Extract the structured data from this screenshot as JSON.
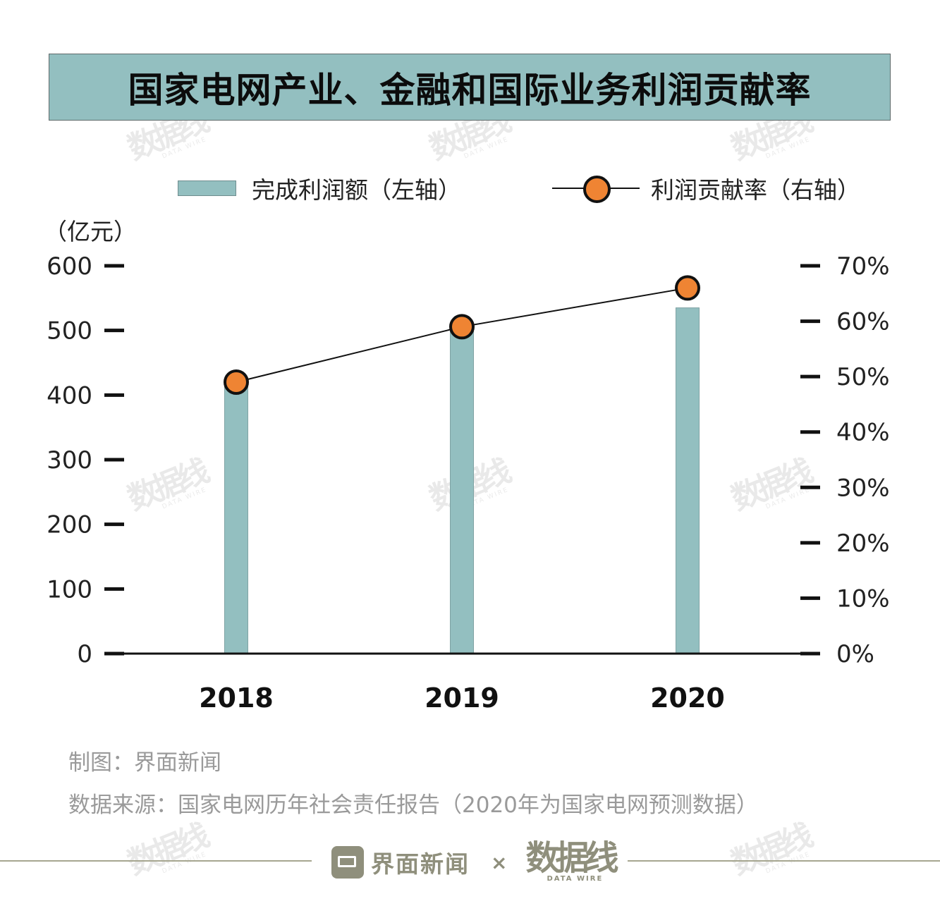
{
  "title": "国家电网产业、金融和国际业务利润贡献率",
  "legend": {
    "bar_label": "完成利润额（左轴）",
    "line_label": "利润贡献率（右轴）"
  },
  "unit_label": "（亿元）",
  "colors": {
    "bar": "#93bfc0",
    "marker": "#ef8433",
    "line": "#111111",
    "title_bg": "#93bfc0"
  },
  "chart_data": {
    "type": "bar",
    "categories": [
      "2018",
      "2019",
      "2020"
    ],
    "series": [
      {
        "name": "完成利润额（左轴）",
        "type": "bar",
        "axis": "left",
        "values": [
          420,
          505,
          535
        ]
      },
      {
        "name": "利润贡献率（右轴）",
        "type": "line",
        "axis": "right",
        "values": [
          49,
          59,
          66
        ]
      }
    ],
    "y_left": {
      "min": 0,
      "max": 600,
      "ticks": [
        "0",
        "100",
        "200",
        "300",
        "400",
        "500",
        "600"
      ]
    },
    "y_right": {
      "min": 0,
      "max": 70,
      "ticks": [
        "0%",
        "10%",
        "20%",
        "30%",
        "40%",
        "50%",
        "60%",
        "70%"
      ]
    },
    "legend_position": "top"
  },
  "source": {
    "credit": "制图：界面新闻",
    "data_source": "数据来源：国家电网历年社会责任报告（2020年为国家电网预测数据）"
  },
  "footer": {
    "brand1": "界面新闻",
    "separator": "×",
    "brand2_mark": "数据线",
    "brand2_sub": "DATA WIRE",
    "brand1_icon": "jiemian-logo-icon"
  },
  "watermark": {
    "mark": "数据线",
    "sub": "DATA WIRE"
  }
}
